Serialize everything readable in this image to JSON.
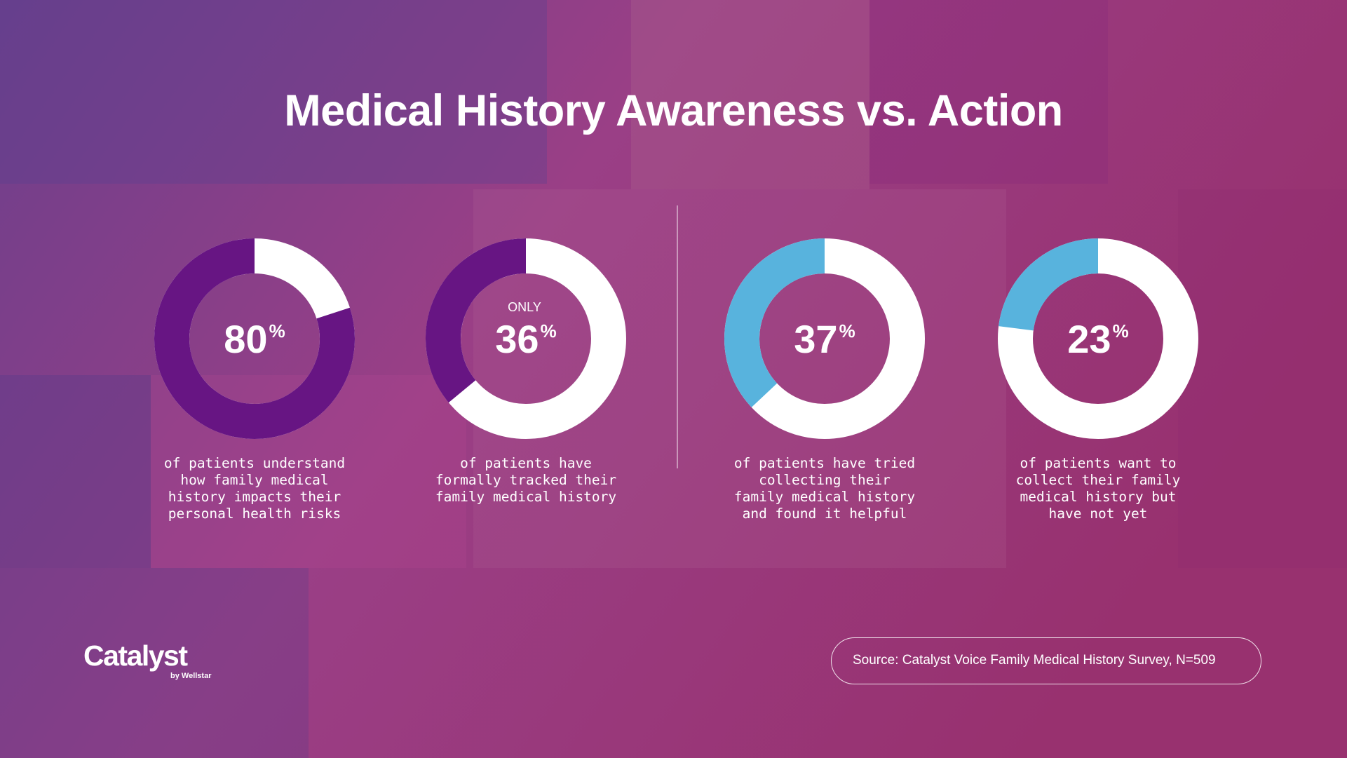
{
  "title": "Medical History Awareness vs. Action",
  "chart_data": [
    {
      "type": "donut",
      "values": [
        80
      ],
      "value_labels": [
        "80%"
      ],
      "color": "#671583",
      "caption": [
        "of patients understand",
        "how family medical",
        "history impacts their",
        "personal health risks"
      ]
    },
    {
      "type": "donut",
      "values": [
        36
      ],
      "value_labels": [
        "36%"
      ],
      "color": "#671583",
      "annotation": "ONLY",
      "caption": [
        "of patients have",
        "formally tracked their",
        "family medical history"
      ]
    },
    {
      "type": "donut",
      "values": [
        37
      ],
      "value_labels": [
        "37%"
      ],
      "color": "#58b3dd",
      "caption": [
        "of patients have tried",
        "collecting their",
        "family medical history",
        "and found it helpful"
      ]
    },
    {
      "type": "donut",
      "values": [
        23
      ],
      "value_labels": [
        "23%"
      ],
      "color": "#58b3dd",
      "caption": [
        "of patients want to",
        "collect their family",
        "medical history but",
        "have not yet"
      ]
    }
  ],
  "logo": {
    "name": "Catalyst",
    "tagline": "by Wellstar"
  },
  "source": "Source: Catalyst Voice Family Medical History Survey, N=509"
}
